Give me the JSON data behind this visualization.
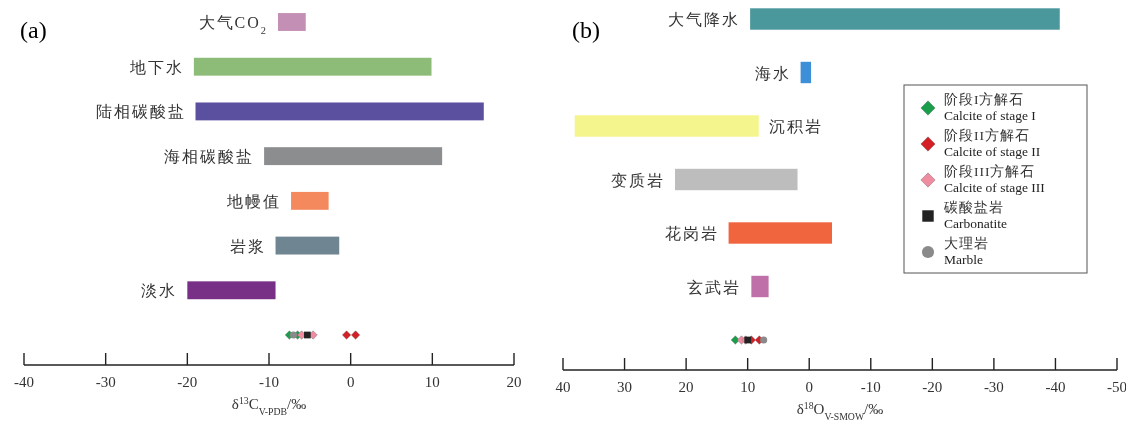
{
  "chart_data": [
    {
      "type": "bar",
      "orientation": "horizontal",
      "title": "(a)",
      "xlabel": "δ$^{13}$C$_{V-PDB}$/‰",
      "categories": [
        "大气CO$_{2}$",
        "地下水",
        "陆相碳酸盐",
        "海相碳酸盐",
        "地幔值",
        "岩浆",
        "淡水",
        null
      ],
      "xlim": [
        -40,
        20
      ],
      "xticks": [
        -40,
        -30,
        -20,
        -10,
        0,
        10,
        20
      ],
      "legend": false,
      "series": [
        {
          "type": "bar",
          "base": [
            -8.9,
            -19.2,
            -19,
            -10.6,
            -7.3,
            -9.2,
            -20,
            null
          ],
          "values": [
            3.4,
            29.1,
            35.3,
            21.8,
            4.6,
            7.8,
            10.8,
            null
          ],
          "colors": [
            "#c48fb5",
            "#8dbb78",
            "#5b50a0",
            "#8c8d8f",
            "#f4895e",
            "#6f8592",
            "#782f86",
            null
          ]
        },
        {
          "type": "scatter",
          "color": "#1a9e4a",
          "marker": "diamond",
          "values": [
            null,
            null,
            null,
            null,
            null,
            null,
            null,
            -7.5
          ]
        },
        {
          "type": "scatter",
          "color": "#1a9e4a",
          "marker": "diamond",
          "values": [
            null,
            null,
            null,
            null,
            null,
            null,
            null,
            -6.5
          ]
        },
        {
          "type": "scatter",
          "color": "#d41f26",
          "marker": "diamond",
          "values": [
            null,
            null,
            null,
            null,
            null,
            null,
            null,
            -0.5
          ]
        },
        {
          "type": "scatter",
          "color": "#d41f26",
          "marker": "diamond",
          "values": [
            null,
            null,
            null,
            null,
            null,
            null,
            null,
            0.6
          ]
        },
        {
          "type": "scatter",
          "color": "#f08ca0",
          "marker": "diamond",
          "values": [
            null,
            null,
            null,
            null,
            null,
            null,
            null,
            -6
          ]
        },
        {
          "type": "scatter",
          "color": "#f08ca0",
          "marker": "diamond",
          "values": [
            null,
            null,
            null,
            null,
            null,
            null,
            null,
            -4.6
          ]
        },
        {
          "type": "scatter",
          "color": "#222222",
          "marker": "square",
          "values": [
            null,
            null,
            null,
            null,
            null,
            null,
            null,
            -5.3
          ]
        },
        {
          "type": "scatter",
          "color": "#8a8a8a",
          "marker": "circle",
          "values": [
            null,
            null,
            null,
            null,
            null,
            null,
            null,
            -7
          ]
        }
      ]
    },
    {
      "type": "bar",
      "orientation": "horizontal",
      "title": "(b)",
      "xlabel": "δ$^{18}$O$_{V-SMOW}$/‰",
      "categories": [
        "大气降水",
        "海水",
        "沉积岩",
        "变质岩",
        "花岗岩",
        "玄武岩",
        null
      ],
      "xlim": [
        40,
        -50
      ],
      "xticks": [
        40,
        30,
        20,
        10,
        0,
        -10,
        -20,
        -30,
        -40,
        -50
      ],
      "legend": "right",
      "series": [
        {
          "type": "bar",
          "base": [
            9.6,
            1.4,
            38.1,
            21.8,
            13.1,
            9.4,
            null
          ],
          "values": [
            -50.3,
            -1.7,
            -29.9,
            -19.9,
            -16.8,
            -2.8,
            null
          ],
          "colors": [
            "#4a979c",
            "#3d8fd8",
            "#f4f58c",
            "#bdbdbd",
            "#f0643e",
            "#c070a8",
            null
          ]
        },
        {
          "type": "scatter",
          "name": "阶段I方解石 Calcite of stage I",
          "color": "#1a9e4a",
          "marker": "diamond",
          "values": [
            null,
            null,
            null,
            null,
            null,
            null,
            12
          ]
        },
        {
          "type": "scatter",
          "name": "阶段II方解石 Calcite of stage II",
          "color": "#d41f26",
          "marker": "diamond",
          "values": [
            null,
            null,
            null,
            null,
            null,
            null,
            9.4
          ]
        },
        {
          "type": "scatter",
          "color": "#d41f26",
          "marker": "diamond",
          "values": [
            null,
            null,
            null,
            null,
            null,
            null,
            8.1
          ]
        },
        {
          "type": "scatter",
          "name": "阶段III方解石 Calcite of stage III",
          "color": "#f08ca0",
          "marker": "diamond",
          "values": [
            null,
            null,
            null,
            null,
            null,
            null,
            11
          ]
        },
        {
          "type": "scatter",
          "color": "#f08ca0",
          "marker": "diamond",
          "values": [
            null,
            null,
            null,
            null,
            null,
            null,
            10.3
          ]
        },
        {
          "type": "scatter",
          "name": "碳酸盐岩 Carbonatite",
          "color": "#222222",
          "marker": "square",
          "values": [
            null,
            null,
            null,
            null,
            null,
            null,
            10
          ]
        },
        {
          "type": "scatter",
          "name": "大理岩 Marble",
          "color": "#8a8a8a",
          "marker": "circle",
          "values": [
            null,
            null,
            null,
            null,
            null,
            null,
            7.4
          ]
        }
      ]
    }
  ]
}
